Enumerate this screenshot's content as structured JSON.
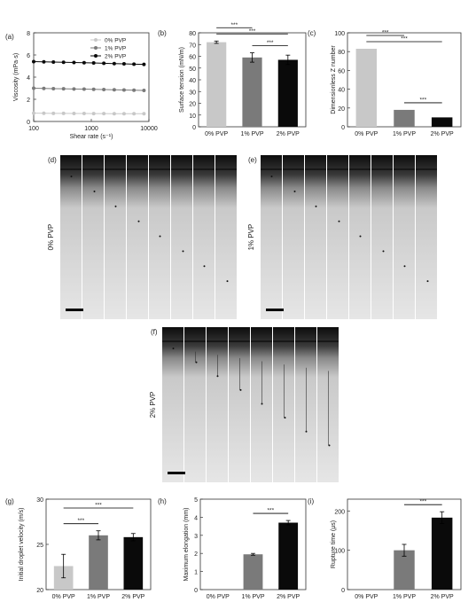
{
  "colors": {
    "p0": "#c8c8c8",
    "p1": "#7a7a7a",
    "p2": "#0a0a0a",
    "axis": "#333333"
  },
  "chart_data": [
    {
      "panel": "(a)",
      "type": "line",
      "xlabel": "Shear rate (s⁻¹)",
      "ylabel": "Viscosity (mPa·s)",
      "xscale": "log",
      "xlim": [
        100,
        10000
      ],
      "ylim": [
        0,
        8
      ],
      "xticks": [
        "100",
        "1000",
        "10000"
      ],
      "yticks": [
        "0",
        "2",
        "4",
        "6",
        "8"
      ],
      "legend_placement": "top-right",
      "x": [
        100,
        150,
        220,
        330,
        500,
        750,
        1100,
        1650,
        2500,
        3700,
        5500,
        8200
      ],
      "series": [
        {
          "name": "0% PVP",
          "color": "#c8c8c8",
          "values": [
            0.75,
            0.74,
            0.73,
            0.73,
            0.72,
            0.72,
            0.71,
            0.71,
            0.7,
            0.7,
            0.7,
            0.7
          ]
        },
        {
          "name": "1% PVP",
          "color": "#7a7a7a",
          "values": [
            3.0,
            2.98,
            2.96,
            2.95,
            2.93,
            2.92,
            2.9,
            2.88,
            2.86,
            2.84,
            2.82,
            2.8
          ]
        },
        {
          "name": "2% PVP",
          "color": "#0a0a0a",
          "values": [
            5.4,
            5.38,
            5.36,
            5.34,
            5.32,
            5.3,
            5.28,
            5.25,
            5.22,
            5.2,
            5.17,
            5.15
          ]
        }
      ]
    },
    {
      "panel": "(b)",
      "type": "bar",
      "categories": [
        "0% PVP",
        "1% PVP",
        "2% PVP"
      ],
      "values": [
        72,
        59,
        57
      ],
      "errors": [
        1,
        4,
        4
      ],
      "ylabel": "Surface tension (mN/m)",
      "ylim": [
        0,
        80
      ],
      "yticks": [
        "0",
        "10",
        "20",
        "30",
        "40",
        "50",
        "60",
        "70",
        "80"
      ],
      "significance": [
        {
          "pair": [
            0,
            2
          ],
          "label": "***"
        },
        {
          "pair": [
            0,
            1
          ],
          "label": "***"
        },
        {
          "pair": [
            1,
            2
          ],
          "label": "***"
        }
      ]
    },
    {
      "panel": "(c)",
      "type": "bar",
      "categories": [
        "0% PVP",
        "1% PVP",
        "2% PVP"
      ],
      "values": [
        83,
        18,
        10
      ],
      "errors": [
        0,
        0,
        0
      ],
      "ylabel": "Dimensionless Z number",
      "ylim": [
        0,
        100
      ],
      "yticks": [
        "0",
        "20",
        "40",
        "60",
        "80",
        "100"
      ],
      "significance": [
        {
          "pair": [
            0,
            2
          ],
          "label": "***"
        },
        {
          "pair": [
            0,
            1
          ],
          "label": "***"
        },
        {
          "pair": [
            1,
            2
          ],
          "label": "***"
        }
      ]
    },
    {
      "panel": "(g)",
      "type": "bar",
      "categories": [
        "0% PVP",
        "1% PVP",
        "2% PVP"
      ],
      "values": [
        22.6,
        26.0,
        25.8
      ],
      "errors": [
        1.3,
        0.5,
        0.4
      ],
      "ylabel": "Initial droplet velocity (m/s)",
      "ylim": [
        20,
        30
      ],
      "yticks": [
        "20",
        "25",
        "30"
      ],
      "significance": [
        {
          "pair": [
            0,
            2
          ],
          "label": "***"
        },
        {
          "pair": [
            0,
            1
          ],
          "label": "***"
        }
      ]
    },
    {
      "panel": "(h)",
      "type": "bar",
      "categories": [
        "0% PVP",
        "1% PVP",
        "2% PVP"
      ],
      "values": [
        0,
        1.95,
        3.7
      ],
      "errors": [
        0,
        0.05,
        0.12
      ],
      "ylabel": "Maximum elongation (mm)",
      "ylim": [
        0,
        5
      ],
      "yticks": [
        "0",
        "1",
        "2",
        "3",
        "4",
        "5"
      ],
      "significance": [
        {
          "pair": [
            1,
            2
          ],
          "label": "***"
        }
      ]
    },
    {
      "panel": "(i)",
      "type": "bar",
      "categories": [
        "0% PVP",
        "1% PVP",
        "2% PVP"
      ],
      "values": [
        0,
        100,
        183
      ],
      "errors": [
        0,
        15,
        15
      ],
      "ylabel": "Rupture time (μs)",
      "ylim": [
        0,
        230
      ],
      "yticks": [
        "0",
        "100",
        "200"
      ],
      "significance": [
        {
          "pair": [
            1,
            2
          ],
          "label": "***"
        }
      ]
    }
  ],
  "image_panels": [
    {
      "panel": "(d)",
      "label": "0% PVP",
      "frames": 8
    },
    {
      "panel": "(e)",
      "label": "1% PVP",
      "frames": 8
    },
    {
      "panel": "(f)",
      "label": "2% PVP",
      "frames": 8
    }
  ]
}
